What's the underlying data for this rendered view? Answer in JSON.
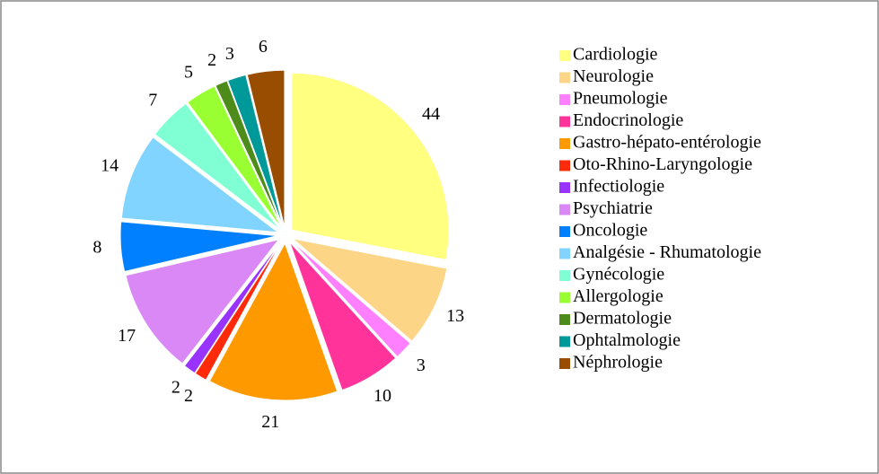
{
  "chart_data": {
    "type": "pie",
    "categories": [
      "Cardiologie",
      "Neurologie",
      "Pneumologie",
      "Endocrinologie",
      "Gastro-hépato-entérologie",
      "Oto-Rhino-Laryngologie",
      "Infectiologie",
      "Psychiatrie",
      "Oncologie",
      "Analgésie - Rhumatologie",
      "Gynécologie",
      "Allergologie",
      "Dermatologie",
      "Ophtalmologie",
      "Néphrologie"
    ],
    "values": [
      44,
      13,
      3,
      10,
      21,
      2,
      2,
      17,
      8,
      14,
      7,
      5,
      2,
      3,
      6
    ],
    "colors": [
      "#ffff80",
      "#fdd587",
      "#ff80ff",
      "#ff3399",
      "#ff9900",
      "#ff2a0a",
      "#9933ff",
      "#d988f5",
      "#0080ff",
      "#80d4ff",
      "#80ffd4",
      "#99ff33",
      "#4d8c1a",
      "#009999",
      "#994d00"
    ],
    "legend": "right"
  }
}
